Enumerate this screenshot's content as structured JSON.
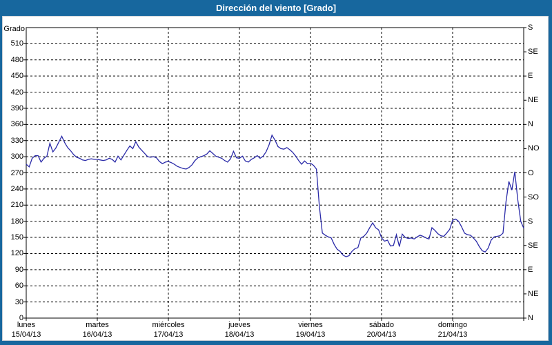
{
  "title": "Dirección del viento [Grado]",
  "colors": {
    "frame": "#17679e",
    "title_text": "#ffffff",
    "panel_bg": "#ffffff",
    "plot_border": "#000000",
    "grid": "#000000",
    "line": "#2a2aa8",
    "label_text": "#000000"
  },
  "chart_data": {
    "type": "line",
    "title": "Dirección del viento [Grado]",
    "unit": "Grado",
    "ylabel_left": "Grado",
    "ylim": [
      0,
      540
    ],
    "y_left_tick_step": 30,
    "y_left_ticks": [
      0,
      30,
      60,
      90,
      120,
      150,
      180,
      210,
      240,
      270,
      300,
      330,
      360,
      390,
      420,
      450,
      480,
      510
    ],
    "y_right_ticks": [
      {
        "value": 540,
        "label": "S"
      },
      {
        "value": 495,
        "label": "SE"
      },
      {
        "value": 450,
        "label": "E"
      },
      {
        "value": 405,
        "label": "NE"
      },
      {
        "value": 360,
        "label": "N"
      },
      {
        "value": 315,
        "label": "NO"
      },
      {
        "value": 270,
        "label": "O"
      },
      {
        "value": 225,
        "label": "SO"
      },
      {
        "value": 180,
        "label": "S"
      },
      {
        "value": 135,
        "label": "SE"
      },
      {
        "value": 90,
        "label": "E"
      },
      {
        "value": 45,
        "label": "NE"
      },
      {
        "value": 0,
        "label": "N"
      }
    ],
    "x_days": [
      {
        "name": "lunes",
        "date": "15/04/13"
      },
      {
        "name": "martes",
        "date": "16/04/13"
      },
      {
        "name": "miércoles",
        "date": "17/04/13"
      },
      {
        "name": "jueves",
        "date": "18/04/13"
      },
      {
        "name": "viernes",
        "date": "19/04/13"
      },
      {
        "name": "sábado",
        "date": "20/04/13"
      },
      {
        "name": "domingo",
        "date": "21/04/13"
      }
    ],
    "grid_style": "dashed",
    "legend": "none",
    "series": [
      {
        "name": "Dirección del viento",
        "sampling": "hourly, Mon 00:00 to Sun 24:00",
        "values": [
          286,
          281,
          297,
          302,
          302,
          290,
          297,
          301,
          325,
          309,
          316,
          327,
          338,
          326,
          317,
          311,
          304,
          299,
          297,
          294,
          293,
          295,
          296,
          295,
          295,
          294,
          293,
          294,
          297,
          295,
          290,
          301,
          294,
          303,
          312,
          320,
          315,
          328,
          318,
          312,
          306,
          300,
          299,
          300,
          298,
          291,
          287,
          290,
          291,
          289,
          286,
          282,
          280,
          278,
          277,
          280,
          285,
          293,
          298,
          300,
          302,
          305,
          311,
          306,
          301,
          299,
          297,
          293,
          290,
          296,
          310,
          298,
          297,
          301,
          292,
          290,
          295,
          298,
          302,
          297,
          301,
          309,
          322,
          340,
          331,
          319,
          315,
          314,
          317,
          313,
          308,
          301,
          293,
          286,
          292,
          287,
          288,
          284,
          277,
          207,
          158,
          154,
          151,
          149,
          137,
          128,
          124,
          117,
          114,
          116,
          124,
          129,
          131,
          149,
          152,
          158,
          168,
          177,
          168,
          164,
          149,
          143,
          145,
          134,
          135,
          155,
          133,
          156,
          150,
          148,
          149,
          147,
          151,
          154,
          152,
          149,
          147,
          168,
          163,
          157,
          153,
          152,
          158,
          165,
          182,
          184,
          180,
          170,
          158,
          155,
          154,
          149,
          143,
          133,
          125,
          123,
          130,
          145,
          151,
          152,
          153,
          158,
          216,
          254,
          238,
          272,
          220,
          180,
          167
        ]
      }
    ]
  }
}
